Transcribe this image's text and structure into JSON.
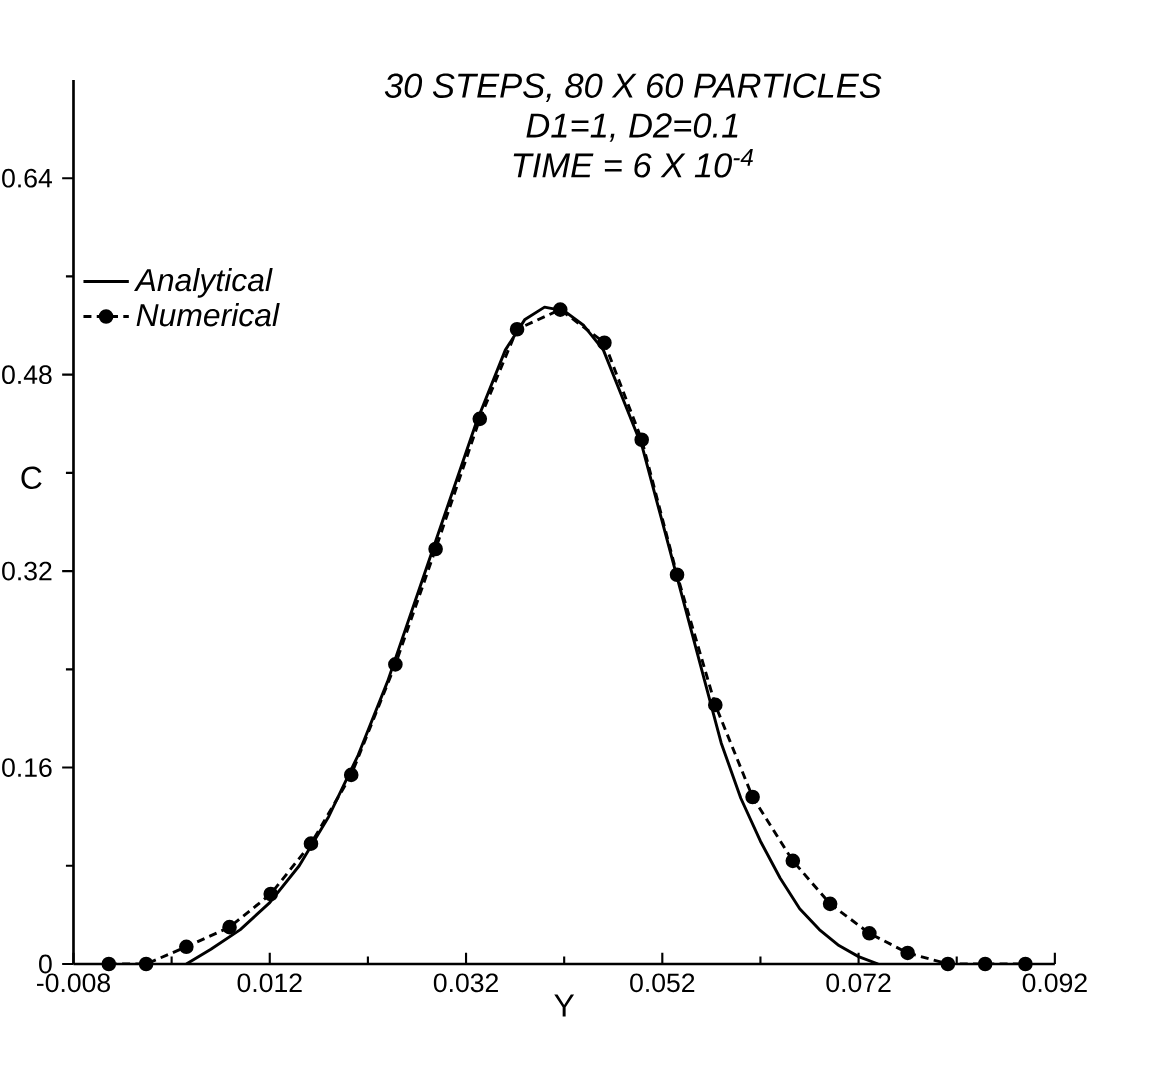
{
  "chart_data": {
    "type": "line",
    "title": "30 STEPS, 80 X 60 PARTICLES",
    "subtitle": "D1=1,  D2=0.1",
    "annotations": [
      "TIME = 6 X 10$^{-4}$"
    ],
    "xlabel": "Y",
    "ylabel": "C",
    "xlim": [
      -0.008,
      0.092
    ],
    "ylim": [
      0,
      0.72
    ],
    "xticks": [
      -0.008,
      0.012,
      0.032,
      0.052,
      0.072,
      0.092
    ],
    "yticks": [
      0,
      0.16,
      0.32,
      0.48,
      0.64
    ],
    "legend": "top left",
    "grid": false,
    "series": [
      {
        "name": "Analytical",
        "color": "#000000",
        "line_style": "solid",
        "marker": "none",
        "x": [
          0.0035,
          0.006,
          0.009,
          0.012,
          0.015,
          0.018,
          0.021,
          0.024,
          0.027,
          0.03,
          0.033,
          0.036,
          0.038,
          0.04,
          0.042,
          0.044,
          0.046,
          0.048,
          0.05,
          0.052,
          0.054,
          0.056,
          0.058,
          0.06,
          0.062,
          0.064,
          0.066,
          0.068,
          0.07,
          0.072,
          0.074
        ],
        "values": [
          0,
          0.012,
          0.028,
          0.05,
          0.08,
          0.12,
          0.17,
          0.23,
          0.3,
          0.37,
          0.44,
          0.5,
          0.525,
          0.535,
          0.532,
          0.52,
          0.5,
          0.46,
          0.42,
          0.36,
          0.3,
          0.24,
          0.18,
          0.135,
          0.1,
          0.07,
          0.045,
          0.028,
          0.015,
          0.006,
          0
        ]
      },
      {
        "name": "Numerical",
        "color": "#000000",
        "line_style": "dashed",
        "marker": "circle",
        "x": [
          -0.0044,
          -0.0006,
          0.0035,
          0.0079,
          0.0121,
          0.0162,
          0.0203,
          0.0248,
          0.0289,
          0.0334,
          0.0372,
          0.0416,
          0.0461,
          0.0499,
          0.0535,
          0.0574,
          0.0612,
          0.0653,
          0.0691,
          0.0731,
          0.077,
          0.0811,
          0.0849,
          0.089
        ],
        "values": [
          0,
          0,
          0.014,
          0.03,
          0.057,
          0.098,
          0.154,
          0.244,
          0.338,
          0.444,
          0.517,
          0.533,
          0.506,
          0.427,
          0.317,
          0.211,
          0.136,
          0.084,
          0.049,
          0.025,
          0.009,
          0,
          0,
          0
        ]
      }
    ]
  }
}
